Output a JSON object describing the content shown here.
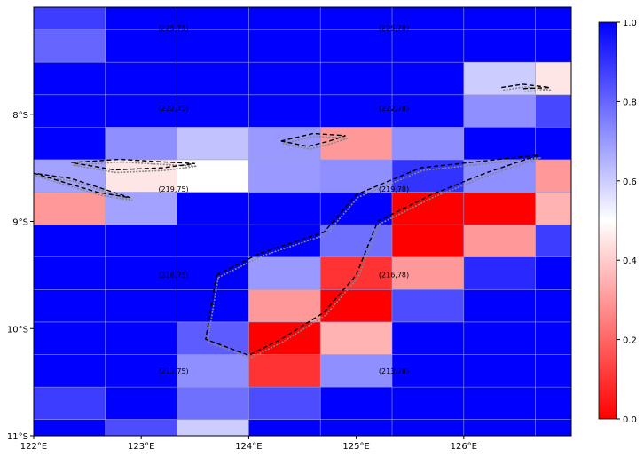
{
  "chart_data": {
    "type": "heatmap",
    "title": "",
    "xlabel": "",
    "ylabel": "",
    "x_cells": 7.5,
    "y_cells": 13.2,
    "x_ticks": [
      "122°E",
      "123°E",
      "124°E",
      "125°E",
      "126°E"
    ],
    "y_ticks": [
      "8°S",
      "9°S",
      "10°S",
      "11°S"
    ],
    "x_tick_values": [
      122,
      123,
      124,
      125,
      126
    ],
    "y_tick_values": [
      -8,
      -9,
      -10,
      -11
    ],
    "xlim": [
      122,
      127
    ],
    "ylim": [
      -11,
      -7
    ],
    "colorbar": {
      "ticks": [
        "0.0",
        "0.2",
        "0.4",
        "0.6",
        "0.8",
        "1.0"
      ],
      "values": [
        0,
        0.2,
        0.4,
        0.6,
        0.8,
        1.0
      ],
      "range": [
        0,
        1
      ],
      "colormap": "bwr_r"
    },
    "colors": {
      "low": "#ff0000",
      "mid": "#ffffff",
      "high": "#0000ff",
      "grid": "#9a9adc",
      "coast": "#888888",
      "outline": "#000000"
    },
    "values": [
      [
        0.88,
        1.0,
        1.0,
        1.0,
        1.0,
        1.0,
        1.0,
        1.0
      ],
      [
        0.8,
        1.0,
        1.0,
        1.0,
        1.0,
        1.0,
        1.0,
        1.0
      ],
      [
        1.0,
        1.0,
        1.0,
        1.0,
        1.0,
        1.0,
        0.6,
        0.45
      ],
      [
        1.0,
        1.0,
        1.0,
        1.0,
        1.0,
        1.0,
        0.72,
        0.86
      ],
      [
        1.0,
        0.72,
        0.62,
        0.7,
        0.3,
        0.72,
        1.0,
        1.0
      ],
      [
        0.68,
        0.45,
        0.5,
        0.7,
        0.72,
        0.9,
        0.72,
        0.3
      ],
      [
        0.3,
        0.68,
        1.0,
        1.0,
        1.0,
        0.0,
        0.0,
        0.35
      ],
      [
        1.0,
        1.0,
        1.0,
        1.0,
        0.78,
        0.0,
        0.3,
        0.88
      ],
      [
        1.0,
        1.0,
        1.0,
        0.7,
        0.1,
        0.3,
        0.92,
        1.0
      ],
      [
        1.0,
        1.0,
        1.0,
        0.3,
        0.0,
        0.85,
        1.0,
        1.0
      ],
      [
        1.0,
        1.0,
        0.82,
        0.0,
        0.35,
        1.0,
        1.0,
        1.0
      ],
      [
        1.0,
        1.0,
        0.72,
        0.1,
        0.72,
        1.0,
        1.0,
        1.0
      ],
      [
        0.88,
        1.0,
        0.78,
        0.85,
        1.0,
        1.0,
        1.0,
        1.0
      ],
      [
        1.0,
        0.85,
        0.6,
        1.0,
        1.0,
        1.0,
        1.0,
        1.0
      ],
      [
        1.0,
        0.92,
        0.85,
        1.0,
        1.0,
        1.0,
        1.0,
        1.0
      ]
    ],
    "annotations": [
      {
        "text": "(225,75)",
        "lon": 123.3,
        "lat": -7.2
      },
      {
        "text": "(225,78)",
        "lon": 125.35,
        "lat": -7.2
      },
      {
        "text": "(222,75)",
        "lon": 123.3,
        "lat": -7.95
      },
      {
        "text": "(222,78)",
        "lon": 125.35,
        "lat": -7.95
      },
      {
        "text": "(219,75)",
        "lon": 123.3,
        "lat": -8.7
      },
      {
        "text": "(219,78)",
        "lon": 125.35,
        "lat": -8.7
      },
      {
        "text": "(216,75)",
        "lon": 123.3,
        "lat": -9.5
      },
      {
        "text": "(216,78)",
        "lon": 125.35,
        "lat": -9.5
      },
      {
        "text": "(213,75)",
        "lon": 123.3,
        "lat": -10.4
      },
      {
        "text": "(213,78)",
        "lon": 125.35,
        "lat": -10.4
      }
    ],
    "outlines": [
      [
        [
          122.0,
          -8.55
        ],
        [
          122.6,
          -8.73
        ],
        [
          122.9,
          -8.78
        ],
        [
          122.35,
          -8.6
        ],
        [
          122.0,
          -8.55
        ]
      ],
      [
        [
          122.35,
          -8.45
        ],
        [
          122.8,
          -8.42
        ],
        [
          123.3,
          -8.45
        ],
        [
          123.5,
          -8.46
        ],
        [
          123.2,
          -8.5
        ],
        [
          122.75,
          -8.52
        ],
        [
          122.35,
          -8.45
        ]
      ],
      [
        [
          124.3,
          -8.25
        ],
        [
          124.6,
          -8.18
        ],
        [
          124.9,
          -8.2
        ],
        [
          124.75,
          -8.25
        ],
        [
          124.55,
          -8.3
        ],
        [
          124.3,
          -8.25
        ]
      ],
      [
        [
          126.35,
          -7.75
        ],
        [
          126.55,
          -7.72
        ],
        [
          126.8,
          -7.75
        ],
        [
          126.55,
          -7.76
        ]
      ],
      [
        [
          123.7,
          -9.5
        ],
        [
          124.1,
          -9.3
        ],
        [
          124.7,
          -9.1
        ],
        [
          125.0,
          -8.75
        ],
        [
          125.6,
          -8.5
        ],
        [
          126.7,
          -8.38
        ],
        [
          126.2,
          -8.55
        ],
        [
          125.7,
          -8.75
        ],
        [
          125.2,
          -9.0
        ],
        [
          125.0,
          -9.5
        ],
        [
          124.7,
          -9.85
        ],
        [
          124.3,
          -10.1
        ],
        [
          124.0,
          -10.25
        ],
        [
          123.6,
          -10.1
        ],
        [
          123.7,
          -9.5
        ]
      ]
    ]
  }
}
